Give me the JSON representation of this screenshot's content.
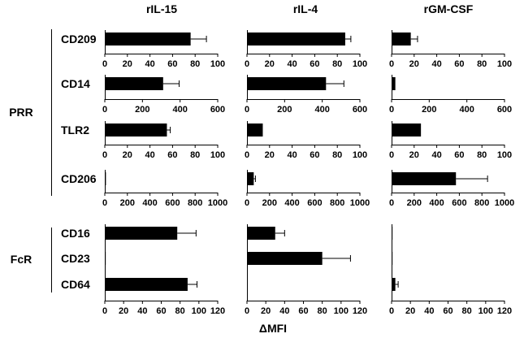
{
  "figure": {
    "column_titles": [
      "rIL-15",
      "rIL-4",
      "rGM-CSF"
    ],
    "group_labels": [
      "PRR",
      "FcR"
    ],
    "x_label": "ΔMFI"
  },
  "chart_data": {
    "type": "bar",
    "orientation": "horizontal",
    "columns": [
      "rIL-15",
      "rIL-4",
      "rGM-CSF"
    ],
    "groups": [
      {
        "name": "PRR",
        "rows": [
          {
            "label": "CD209",
            "xlim": [
              0,
              100
            ],
            "ticks": [
              0,
              20,
              40,
              60,
              80,
              100
            ],
            "values": [
              76,
              87,
              17
            ],
            "errors": [
              14,
              5,
              6
            ]
          },
          {
            "label": "CD14",
            "xlim": [
              0,
              600
            ],
            "ticks": [
              0,
              200,
              400,
              600
            ],
            "values": [
              310,
              420,
              20
            ],
            "errors": [
              85,
              95,
              0
            ]
          },
          {
            "label": "TLR2",
            "xlim": [
              0,
              100
            ],
            "ticks": [
              0,
              20,
              40,
              60,
              80,
              100
            ],
            "values": [
              55,
              14,
              26
            ],
            "errors": [
              3,
              0,
              0
            ]
          },
          {
            "label": "CD206",
            "xlim": [
              0,
              1000
            ],
            "ticks": [
              0,
              200,
              400,
              600,
              800,
              1000
            ],
            "values": [
              10,
              60,
              570
            ],
            "errors": [
              0,
              15,
              280
            ]
          }
        ]
      },
      {
        "name": "FcR",
        "shared_axis": {
          "xlim": [
            0,
            120
          ],
          "ticks": [
            0,
            20,
            40,
            60,
            80,
            100,
            120
          ]
        },
        "rows": [
          {
            "label": "CD16",
            "values": [
              77,
              30,
              1
            ],
            "errors": [
              20,
              10,
              0
            ]
          },
          {
            "label": "CD23",
            "values": [
              1,
              80,
              1
            ],
            "errors": [
              0,
              30,
              0
            ]
          },
          {
            "label": "CD64",
            "values": [
              88,
              0,
              4
            ],
            "errors": [
              10,
              0,
              3
            ]
          }
        ]
      }
    ]
  }
}
